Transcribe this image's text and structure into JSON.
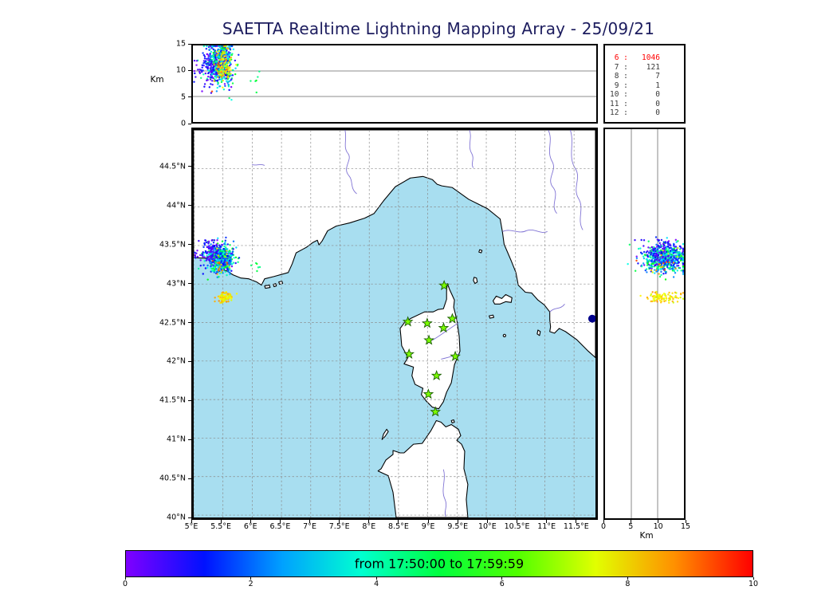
{
  "title": "SAETTA Realtime Lightning Mapping Array - 25/09/21",
  "axes": {
    "km_label_top": "Km",
    "km_label_right": "Km",
    "top_alt_tick_labels": [
      "0",
      "5",
      "10",
      "15"
    ],
    "right_alt_tick_labels": [
      "0",
      "5",
      "10",
      "15"
    ],
    "lat_tick_labels": [
      "44.5°N",
      "44°N",
      "43.5°N",
      "43°N",
      "42.5°N",
      "42°N",
      "41.5°N",
      "41°N",
      "40.5°N",
      "40°N"
    ],
    "lon_tick_labels": [
      "5°E",
      "5.5°E",
      "6°E",
      "6.5°E",
      "7°E",
      "7.5°E",
      "8°E",
      "8.5°E",
      "9°E",
      "9.5°E",
      "10°E",
      "10.5°E",
      "11°E",
      "11.5°E"
    ]
  },
  "counts_panel": {
    "rows": [
      {
        "label": "6",
        "value": "1046",
        "hot": true
      },
      {
        "label": "7",
        "value": "121",
        "hot": false
      },
      {
        "label": "8",
        "value": "7",
        "hot": false
      },
      {
        "label": "9",
        "value": "1",
        "hot": false
      },
      {
        "label": "10",
        "value": "0",
        "hot": false
      },
      {
        "label": "11",
        "value": "0",
        "hot": false
      },
      {
        "label": "12",
        "value": "0",
        "hot": false
      }
    ]
  },
  "colorbar": {
    "label": "from 17:50:00 to 17:59:59",
    "tick_labels": [
      "0",
      "2",
      "4",
      "6",
      "8",
      "10"
    ],
    "tick_values": [
      0,
      2,
      4,
      6,
      8,
      10
    ],
    "min": 0,
    "max": 10
  },
  "colors": {
    "sea": "#a8def0",
    "land": "#ffffff",
    "coast": "#000000",
    "river": "#6a5acd",
    "grid": "#8a8a8a",
    "station_fill": "#7cfc00",
    "station_edge": "#1b5e00",
    "navy_marker": "#00008b",
    "hot_count": "#ff0000"
  },
  "chart_data": {
    "type": "scatter",
    "title": "SAETTA Realtime Lightning Mapping Array - 25/09/21",
    "projection_panels": [
      "lon-alt (top)",
      "lon-lat (map)",
      "alt-lat (right)"
    ],
    "map_extent": {
      "lon_min": 5.0,
      "lon_max": 11.86,
      "lat_min": 39.97,
      "lat_max": 45.0
    },
    "lon_gridlines": [
      5,
      5.5,
      6,
      6.5,
      7,
      7.5,
      8,
      8.5,
      9,
      9.5,
      10,
      10.5,
      11,
      11.5
    ],
    "lat_gridlines": [
      44.5,
      44,
      43.5,
      43,
      42.5,
      42,
      41.5,
      41,
      40.5,
      40
    ],
    "altitude_axis": {
      "min_km": 0,
      "max_km": 15,
      "ticks": [
        0,
        5,
        10,
        15
      ],
      "inner_gridlines": [
        5,
        10
      ],
      "label": "Km"
    },
    "colormap": "rainbow",
    "time_window": {
      "start": "17:50:00",
      "end": "17:59:59",
      "colorbar_min": 0,
      "colorbar_max": 10,
      "colorbar_ticks": [
        0,
        2,
        4,
        6,
        8,
        10
      ],
      "units": "minutes"
    },
    "sources_by_station_count": [
      {
        "stations": 6,
        "sources": 1046
      },
      {
        "stations": 7,
        "sources": 121
      },
      {
        "stations": 8,
        "sources": 7
      },
      {
        "stations": 9,
        "sources": 1
      },
      {
        "stations": 10,
        "sources": 0
      },
      {
        "stations": 11,
        "sources": 0
      },
      {
        "stations": 12,
        "sources": 0
      }
    ],
    "stations_lon_lat": [
      [
        9.28,
        42.98
      ],
      [
        8.66,
        42.51
      ],
      [
        8.99,
        42.49
      ],
      [
        9.27,
        42.43
      ],
      [
        9.42,
        42.55
      ],
      [
        9.02,
        42.27
      ],
      [
        8.68,
        42.09
      ],
      [
        9.47,
        42.06
      ],
      [
        9.15,
        41.81
      ],
      [
        9.01,
        41.57
      ],
      [
        9.13,
        41.34
      ]
    ],
    "lightning_clusters": [
      {
        "name": "marseille-cell-early",
        "n": 620,
        "lon_mean": 5.47,
        "lon_sd": 0.11,
        "lat_mean": 43.33,
        "lat_sd": 0.085,
        "alt_mean_km": 11.6,
        "alt_sd_km": 2.1,
        "t_min_min": 0.0,
        "t_max_min": 5.5
      },
      {
        "name": "west-halo-early",
        "n": 80,
        "lon_mean": 5.27,
        "lon_sd": 0.13,
        "lat_mean": 43.42,
        "lat_sd": 0.09,
        "alt_mean_km": 10.8,
        "alt_sd_km": 1.9,
        "t_min_min": 0.0,
        "t_max_min": 1.6
      },
      {
        "name": "south-cell-late",
        "n": 85,
        "lon_mean": 5.54,
        "lon_sd": 0.06,
        "lat_mean": 42.82,
        "lat_sd": 0.035,
        "alt_mean_km": 11.2,
        "alt_sd_km": 1.6,
        "t_min_min": 7.2,
        "t_max_min": 8.8
      },
      {
        "name": "in-cell-late-specks",
        "n": 20,
        "lon_mean": 5.5,
        "lon_sd": 0.1,
        "lat_mean": 43.3,
        "lat_sd": 0.08,
        "alt_mean_km": 11.0,
        "alt_sd_km": 2.0,
        "t_min_min": 7.0,
        "t_max_min": 9.7
      },
      {
        "name": "east-specks",
        "n": 6,
        "lon_mean": 6.08,
        "lon_sd": 0.05,
        "lat_mean": 43.22,
        "lat_sd": 0.05,
        "alt_mean_km": 8.2,
        "alt_sd_km": 0.9,
        "t_min_min": 4.3,
        "t_max_min": 5.6
      }
    ],
    "point_marker": {
      "name": "navy-dot",
      "lon": 11.81,
      "lat": 42.55
    }
  }
}
